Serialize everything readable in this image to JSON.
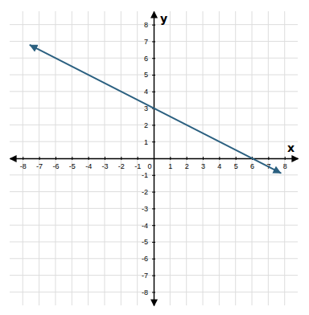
{
  "chart_data": {
    "type": "line",
    "xlabel": "x",
    "ylabel": "y",
    "x": [
      -7.55,
      7.75
    ],
    "values": [
      6.775,
      -0.875
    ],
    "color": "#2b6080",
    "xlim": [
      -8.8,
      8.8
    ],
    "ylim": [
      -8.8,
      8.8
    ],
    "xticks": [
      -8,
      -7,
      -6,
      -5,
      -4,
      -3,
      -2,
      -1,
      0,
      1,
      2,
      3,
      4,
      5,
      6,
      7,
      8
    ],
    "yticks": [
      -8,
      -7,
      -6,
      -5,
      -4,
      -3,
      -2,
      -1,
      1,
      2,
      3,
      4,
      5,
      6,
      7,
      8
    ],
    "grid": true
  }
}
